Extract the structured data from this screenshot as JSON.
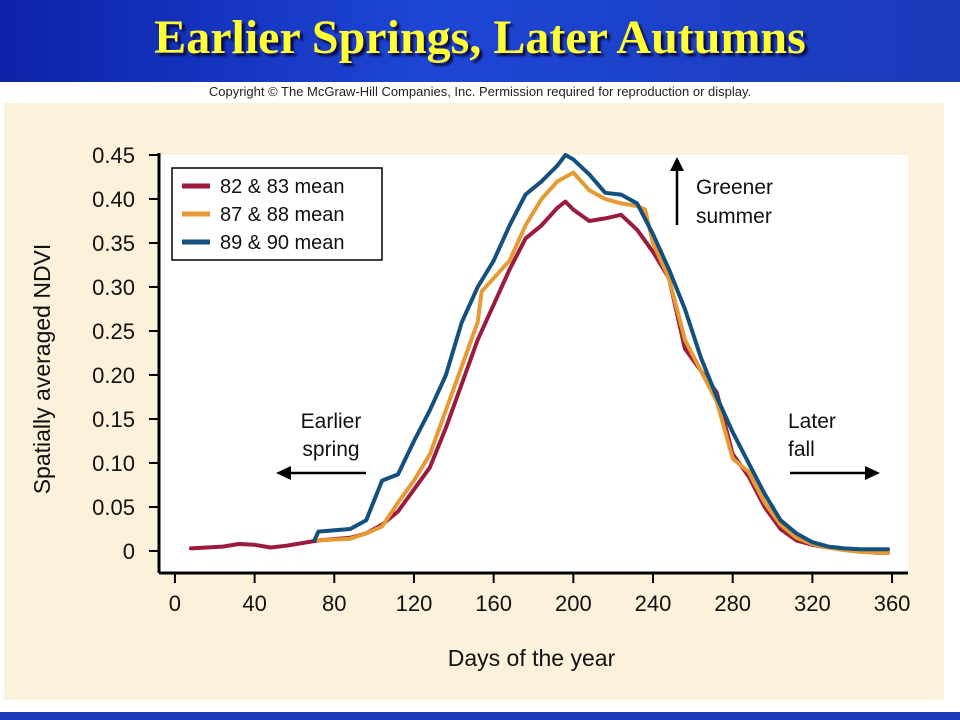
{
  "slide": {
    "title": "Earlier Springs, Later Autumns",
    "copyright": "Copyright © The McGraw-Hill Companies, Inc. Permission required for reproduction or display."
  },
  "colors": {
    "header_blue": "#1a3bb8",
    "title_yellow": "#ffff33",
    "panel_background": "#fcf2dc"
  },
  "chart_data": {
    "type": "line",
    "xlabel": "Days of the year",
    "ylabel": "Spatially averaged NDVI",
    "xlim": [
      -8,
      368
    ],
    "ylim": [
      -0.025,
      0.45
    ],
    "xticks": [
      0,
      40,
      80,
      120,
      160,
      200,
      240,
      280,
      320,
      360
    ],
    "yticks": [
      0,
      0.05,
      0.1,
      0.15,
      0.2,
      0.25,
      0.3,
      0.35,
      0.4,
      0.45
    ],
    "ytick_labels": [
      "0",
      "0.05",
      "0.10",
      "0.15",
      "0.20",
      "0.25",
      "0.30",
      "0.35",
      "0.40",
      "0.45"
    ],
    "grid": false,
    "legend_position": "top-left",
    "series": [
      {
        "name": "82 & 83 mean",
        "color": "#9b1b3e",
        "x": [
          8,
          24,
          32,
          40,
          48,
          56,
          72,
          88,
          96,
          104,
          112,
          120,
          128,
          136,
          144,
          152,
          160,
          168,
          176,
          184,
          192,
          196,
          200,
          208,
          216,
          224,
          232,
          240,
          248,
          256,
          264,
          272,
          280,
          288,
          296,
          304,
          312,
          320,
          328,
          336,
          344,
          352,
          358
        ],
        "y": [
          0.003,
          0.005,
          0.008,
          0.007,
          0.004,
          0.006,
          0.012,
          0.015,
          0.02,
          0.03,
          0.045,
          0.07,
          0.095,
          0.14,
          0.19,
          0.24,
          0.28,
          0.32,
          0.355,
          0.37,
          0.39,
          0.397,
          0.388,
          0.375,
          0.378,
          0.382,
          0.365,
          0.34,
          0.31,
          0.23,
          0.205,
          0.18,
          0.11,
          0.085,
          0.05,
          0.025,
          0.012,
          0.007,
          0.004,
          0.002,
          0.0,
          -0.002,
          -0.002
        ]
      },
      {
        "name": "87 & 88 mean",
        "color": "#e59a33",
        "x": [
          72,
          88,
          96,
          104,
          112,
          120,
          128,
          136,
          144,
          152,
          154,
          160,
          168,
          176,
          184,
          192,
          200,
          208,
          216,
          224,
          232,
          236,
          240,
          248,
          256,
          264,
          272,
          280,
          288,
          296,
          304,
          312,
          320,
          328,
          336,
          344,
          352,
          358
        ],
        "y": [
          0.012,
          0.014,
          0.02,
          0.028,
          0.055,
          0.08,
          0.11,
          0.16,
          0.21,
          0.26,
          0.295,
          0.31,
          0.33,
          0.37,
          0.4,
          0.42,
          0.43,
          0.41,
          0.4,
          0.395,
          0.392,
          0.388,
          0.35,
          0.31,
          0.24,
          0.205,
          0.17,
          0.105,
          0.09,
          0.055,
          0.03,
          0.015,
          0.008,
          0.004,
          0.001,
          -0.001,
          -0.002,
          -0.002
        ]
      },
      {
        "name": "89 & 90 mean",
        "color": "#14507d",
        "x": [
          70,
          72,
          88,
          96,
          104,
          112,
          120,
          128,
          136,
          144,
          152,
          160,
          168,
          176,
          184,
          192,
          196,
          200,
          208,
          216,
          224,
          232,
          240,
          248,
          256,
          264,
          272,
          280,
          288,
          296,
          304,
          312,
          320,
          328,
          336,
          344,
          352,
          358
        ],
        "y": [
          0.012,
          0.022,
          0.025,
          0.035,
          0.08,
          0.087,
          0.125,
          0.16,
          0.2,
          0.26,
          0.3,
          0.33,
          0.37,
          0.405,
          0.42,
          0.438,
          0.45,
          0.445,
          0.428,
          0.407,
          0.405,
          0.395,
          0.36,
          0.32,
          0.275,
          0.22,
          0.175,
          0.135,
          0.1,
          0.065,
          0.035,
          0.02,
          0.01,
          0.005,
          0.003,
          0.002,
          0.002,
          0.002
        ]
      }
    ],
    "annotations": [
      {
        "id": "greener",
        "lines": [
          "Greener",
          "summer"
        ],
        "arrow": "up"
      },
      {
        "id": "earlier",
        "lines": [
          "Earlier",
          "spring"
        ],
        "arrow": "left"
      },
      {
        "id": "later",
        "lines": [
          "Later",
          "fall"
        ],
        "arrow": "right"
      }
    ]
  }
}
